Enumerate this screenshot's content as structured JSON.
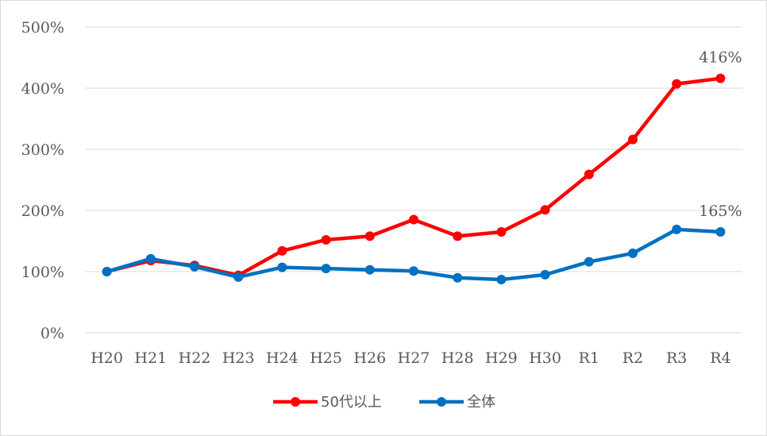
{
  "chart_data": {
    "type": "line",
    "categories": [
      "H20",
      "H21",
      "H22",
      "H23",
      "H24",
      "H25",
      "H26",
      "H27",
      "H28",
      "H29",
      "H30",
      "R1",
      "R2",
      "R3",
      "R4"
    ],
    "series": [
      {
        "name": "50代以上",
        "color": "#ff0000",
        "values": [
          100,
          118,
          110,
          94,
          134,
          152,
          158,
          185,
          158,
          165,
          201,
          259,
          316,
          407,
          416
        ],
        "end_label": "416%"
      },
      {
        "name": "全体",
        "color": "#0070c0",
        "values": [
          100,
          121,
          108,
          91,
          107,
          105,
          103,
          101,
          90,
          87,
          95,
          116,
          130,
          169,
          165
        ],
        "end_label": "165%"
      }
    ],
    "ylim": [
      0,
      500
    ],
    "yticks": [
      "0%",
      "100%",
      "200%",
      "300%",
      "400%",
      "500%"
    ],
    "grid": true,
    "legend": "bottom"
  }
}
